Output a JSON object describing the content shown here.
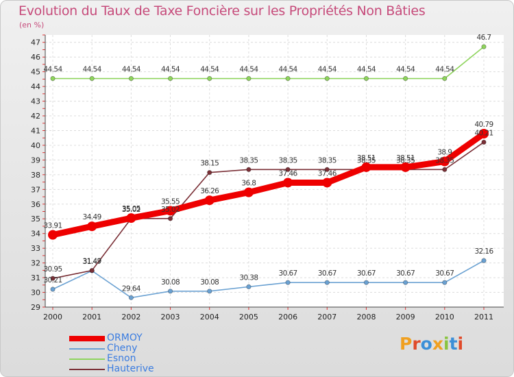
{
  "chart_data": {
    "type": "line",
    "title": "Evolution du Taux de Taxe Foncière sur les Propriétés Non Bâties",
    "ylabel": "(en %)",
    "xlabel": "",
    "ylim": [
      29,
      47.5
    ],
    "yticks": [
      29,
      30,
      31,
      32,
      33,
      34,
      35,
      36,
      37,
      38,
      39,
      40,
      41,
      42,
      43,
      44,
      45,
      46,
      47
    ],
    "categories": [
      "2000",
      "2001",
      "2002",
      "2003",
      "2004",
      "2005",
      "2006",
      "2007",
      "2008",
      "2009",
      "2010",
      "2011"
    ],
    "series": [
      {
        "name": "ORMOY",
        "color": "#ee0000",
        "emphasis": true,
        "values": [
          33.91,
          34.49,
          35.05,
          35.55,
          36.26,
          36.8,
          37.46,
          37.46,
          38.51,
          38.51,
          38.9,
          40.79
        ],
        "labels": [
          "33.91",
          "34.49",
          "35.05",
          "35.55",
          "36.26",
          "36.8",
          "37.46",
          "37.46",
          "38.51",
          "38.51",
          "38.9",
          "40.79"
        ]
      },
      {
        "name": "Cheny",
        "color": "#6aa1d2",
        "values": [
          30.21,
          31.47,
          29.64,
          30.08,
          30.08,
          30.38,
          30.67,
          30.67,
          30.67,
          30.67,
          30.67,
          32.16
        ],
        "labels": [
          "30.21",
          "31.47",
          "29.64",
          "30.08",
          "30.08",
          "30.38",
          "30.67",
          "30.67",
          "30.67",
          "30.67",
          "30.67",
          "32.16"
        ]
      },
      {
        "name": "Esnon",
        "color": "#8ed45c",
        "values": [
          44.54,
          44.54,
          44.54,
          44.54,
          44.54,
          44.54,
          44.54,
          44.54,
          44.54,
          44.54,
          44.54,
          46.7
        ],
        "labels": [
          "44.54",
          "44.54",
          "44.54",
          "44.54",
          "44.54",
          "44.54",
          "44.54",
          "44.54",
          "44.54",
          "44.54",
          "44.54",
          "46.7"
        ]
      },
      {
        "name": "Hauterive",
        "color": "#7a2f36",
        "values": [
          30.95,
          31.49,
          35.02,
          35.02,
          38.15,
          38.35,
          38.35,
          38.35,
          38.35,
          38.35,
          38.35,
          40.21
        ],
        "labels": [
          "30.95",
          "31.49",
          "35.02",
          "35.02",
          "38.15",
          "38.35",
          "38.35",
          "38.35",
          "38.35",
          "38.35",
          "38.35",
          "40.21"
        ]
      }
    ]
  },
  "logo": {
    "text": "Proxiti",
    "colors": [
      "#f0a020",
      "#e04a2a",
      "#3c8fd8",
      "#f0a020",
      "#8ac440",
      "#3c8fd8",
      "#e04a2a"
    ]
  }
}
